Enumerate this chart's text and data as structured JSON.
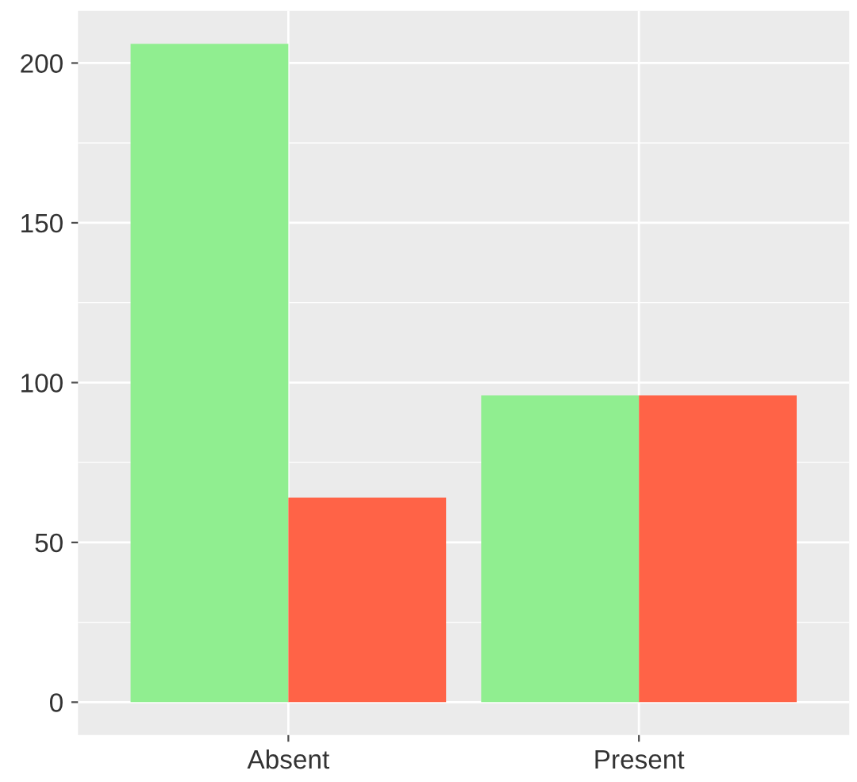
{
  "chart_data": {
    "type": "bar",
    "categories": [
      "Absent",
      "Present"
    ],
    "series": [
      {
        "color": "#90ee90",
        "values": [
          206,
          96
        ]
      },
      {
        "color": "#ff6347",
        "values": [
          64,
          96
        ]
      }
    ],
    "ylim": [
      -10.3,
      216.3
    ],
    "yticks": [
      0,
      50,
      100,
      150,
      200
    ],
    "grid": true
  }
}
